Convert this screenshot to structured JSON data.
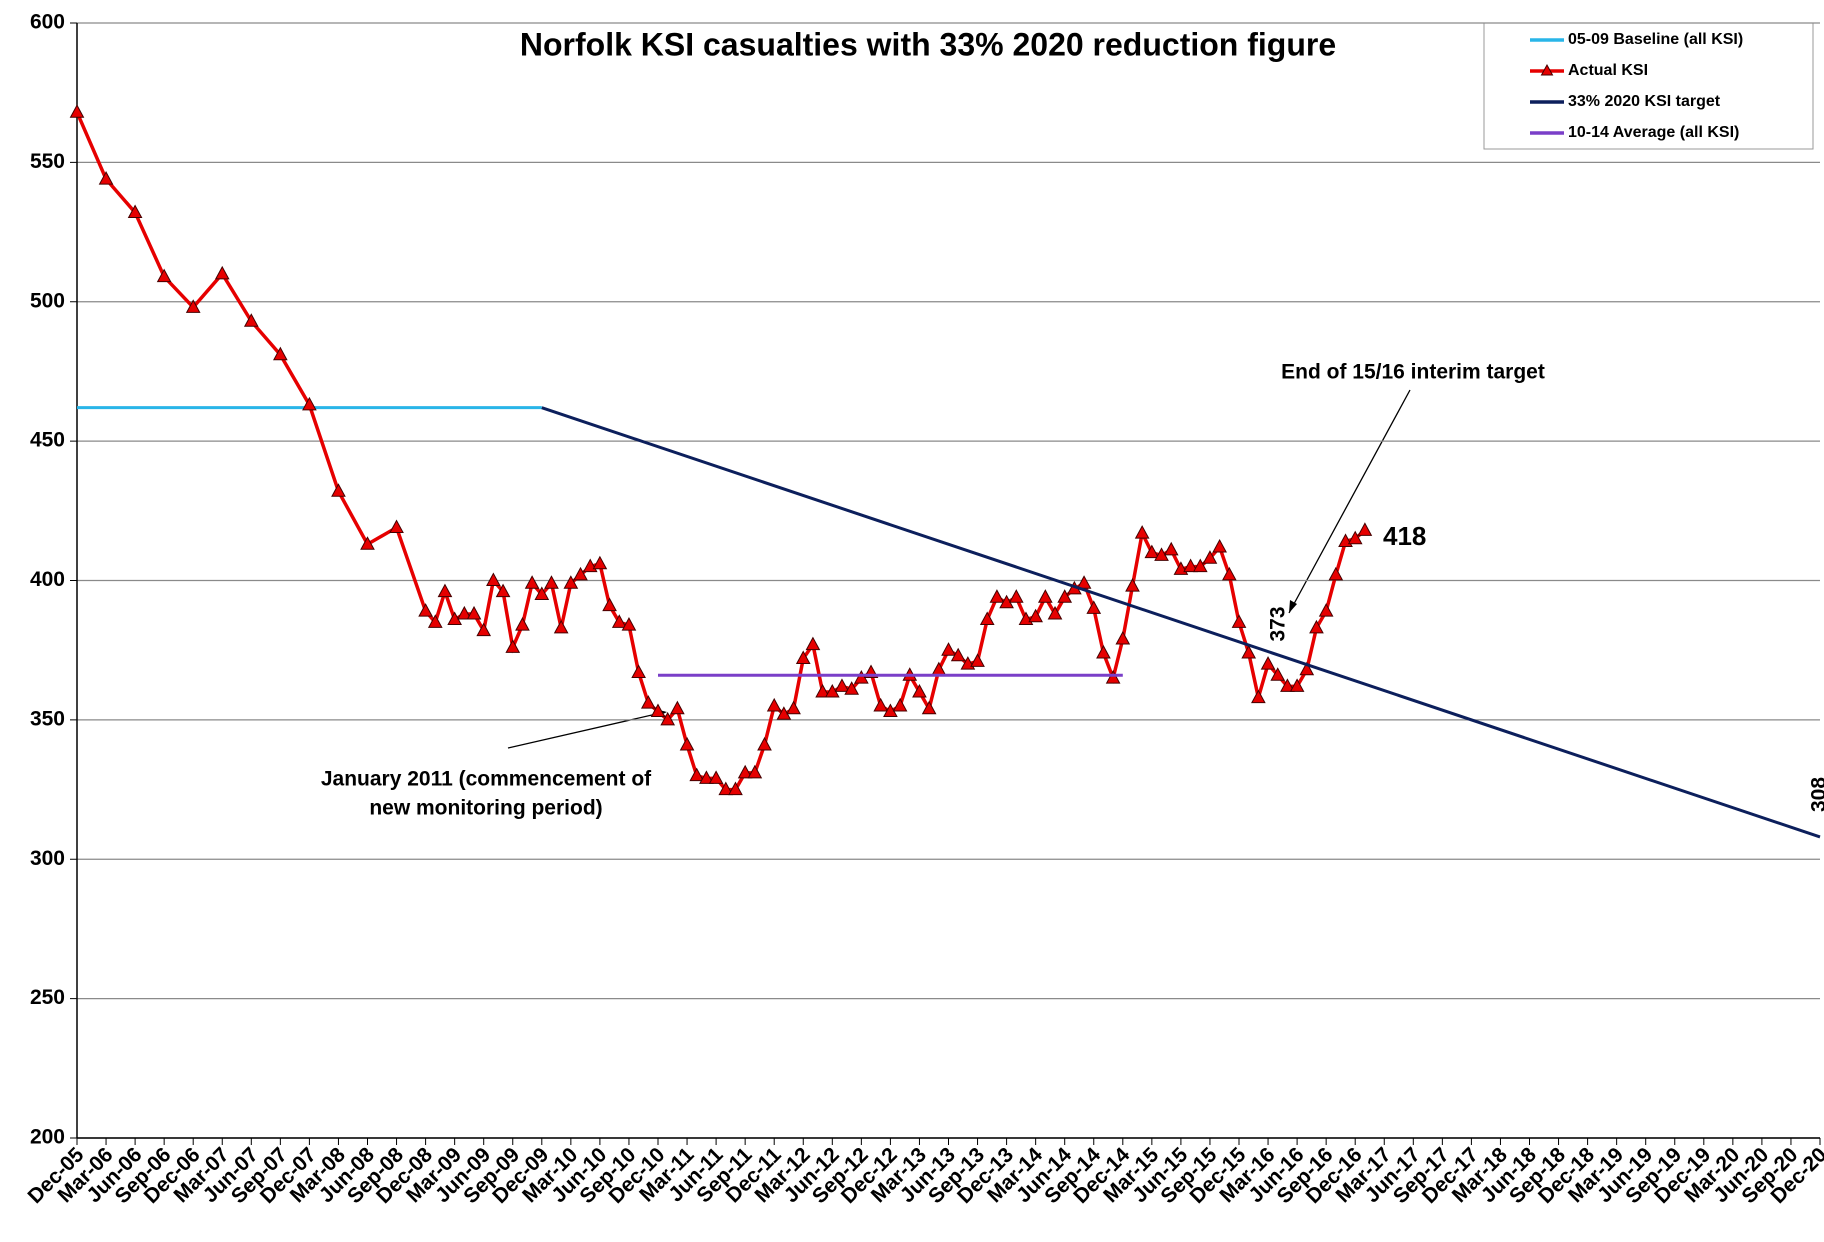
{
  "chart_data": {
    "type": "line",
    "title": "Norfolk KSI casualties with 33% 2020 reduction figure",
    "ylim": [
      200,
      600
    ],
    "yticks": [
      200,
      250,
      300,
      350,
      400,
      450,
      500,
      550,
      600
    ],
    "xlim": [
      {
        "value": "2005-12",
        "label": "Dec-05"
      },
      {
        "value": "2020-12",
        "label": "Dec-20"
      }
    ],
    "grid": true,
    "legend": "top-right",
    "xticks": [
      {
        "value": "2005-12",
        "label": "Dec-05"
      },
      {
        "value": "2006-03",
        "label": "Mar-06"
      },
      {
        "value": "2006-06",
        "label": "Jun-06"
      },
      {
        "value": "2006-09",
        "label": "Sep-06"
      },
      {
        "value": "2006-12",
        "label": "Dec-06"
      },
      {
        "value": "2007-03",
        "label": "Mar-07"
      },
      {
        "value": "2007-06",
        "label": "Jun-07"
      },
      {
        "value": "2007-09",
        "label": "Sep-07"
      },
      {
        "value": "2007-12",
        "label": "Dec-07"
      },
      {
        "value": "2008-03",
        "label": "Mar-08"
      },
      {
        "value": "2008-06",
        "label": "Jun-08"
      },
      {
        "value": "2008-09",
        "label": "Sep-08"
      },
      {
        "value": "2008-12",
        "label": "Dec-08"
      },
      {
        "value": "2009-03",
        "label": "Mar-09"
      },
      {
        "value": "2009-06",
        "label": "Jun-09"
      },
      {
        "value": "2009-09",
        "label": "Sep-09"
      },
      {
        "value": "2009-12",
        "label": "Dec-09"
      },
      {
        "value": "2010-03",
        "label": "Mar-10"
      },
      {
        "value": "2010-06",
        "label": "Jun-10"
      },
      {
        "value": "2010-09",
        "label": "Sep-10"
      },
      {
        "value": "2010-12",
        "label": "Dec-10"
      },
      {
        "value": "2011-03",
        "label": "Mar-11"
      },
      {
        "value": "2011-06",
        "label": "Jun-11"
      },
      {
        "value": "2011-09",
        "label": "Sep-11"
      },
      {
        "value": "2011-12",
        "label": "Dec-11"
      },
      {
        "value": "2012-03",
        "label": "Mar-12"
      },
      {
        "value": "2012-06",
        "label": "Jun-12"
      },
      {
        "value": "2012-09",
        "label": "Sep-12"
      },
      {
        "value": "2012-12",
        "label": "Dec-12"
      },
      {
        "value": "2013-03",
        "label": "Mar-13"
      },
      {
        "value": "2013-06",
        "label": "Jun-13"
      },
      {
        "value": "2013-09",
        "label": "Sep-13"
      },
      {
        "value": "2013-12",
        "label": "Dec-13"
      },
      {
        "value": "2014-03",
        "label": "Mar-14"
      },
      {
        "value": "2014-06",
        "label": "Jun-14"
      },
      {
        "value": "2014-09",
        "label": "Sep-14"
      },
      {
        "value": "2014-12",
        "label": "Dec-14"
      },
      {
        "value": "2015-03",
        "label": "Mar-15"
      },
      {
        "value": "2015-06",
        "label": "Jun-15"
      },
      {
        "value": "2015-09",
        "label": "Sep-15"
      },
      {
        "value": "2015-12",
        "label": "Dec-15"
      },
      {
        "value": "2016-03",
        "label": "Mar-16"
      },
      {
        "value": "2016-06",
        "label": "Jun-16"
      },
      {
        "value": "2016-09",
        "label": "Sep-16"
      },
      {
        "value": "2016-12",
        "label": "Dec-16"
      },
      {
        "value": "2017-03",
        "label": "Mar-17"
      },
      {
        "value": "2017-06",
        "label": "Jun-17"
      },
      {
        "value": "2017-09",
        "label": "Sep-17"
      },
      {
        "value": "2017-12",
        "label": "Dec-17"
      },
      {
        "value": "2018-03",
        "label": "Mar-18"
      },
      {
        "value": "2018-06",
        "label": "Jun-18"
      },
      {
        "value": "2018-09",
        "label": "Sep-18"
      },
      {
        "value": "2018-12",
        "label": "Dec-18"
      },
      {
        "value": "2019-03",
        "label": "Mar-19"
      },
      {
        "value": "2019-06",
        "label": "Jun-19"
      },
      {
        "value": "2019-09",
        "label": "Sep-19"
      },
      {
        "value": "2019-12",
        "label": "Dec-19"
      },
      {
        "value": "2020-03",
        "label": "Mar-20"
      },
      {
        "value": "2020-06",
        "label": "Jun-20"
      },
      {
        "value": "2020-09",
        "label": "Sep-20"
      },
      {
        "value": "2020-12",
        "label": "Dec-20"
      }
    ],
    "series": [
      {
        "name": "05-09 Baseline (all KSI)",
        "color": "#29b5e8",
        "x": [
          "2005-12",
          "2009-12"
        ],
        "values": [
          462,
          462
        ]
      },
      {
        "name": "Actual KSI",
        "color": "#e60000",
        "marker": "triangle",
        "x": [
          "2005-12",
          "2006-03",
          "2006-06",
          "2006-09",
          "2006-12",
          "2007-03",
          "2007-06",
          "2007-09",
          "2007-12",
          "2008-03",
          "2008-06",
          "2008-09",
          "2008-12",
          "2009-01",
          "2009-02",
          "2009-03",
          "2009-04",
          "2009-05",
          "2009-06",
          "2009-07",
          "2009-08",
          "2009-09",
          "2009-10",
          "2009-11",
          "2009-12",
          "2010-01",
          "2010-02",
          "2010-03",
          "2010-04",
          "2010-05",
          "2010-06",
          "2010-07",
          "2010-08",
          "2010-09",
          "2010-10",
          "2010-11",
          "2010-12",
          "2011-01",
          "2011-02",
          "2011-03",
          "2011-04",
          "2011-05",
          "2011-06",
          "2011-07",
          "2011-08",
          "2011-09",
          "2011-10",
          "2011-11",
          "2011-12",
          "2012-01",
          "2012-02",
          "2012-03",
          "2012-04",
          "2012-05",
          "2012-06",
          "2012-07",
          "2012-08",
          "2012-09",
          "2012-10",
          "2012-11",
          "2012-12",
          "2013-01",
          "2013-02",
          "2013-03",
          "2013-04",
          "2013-05",
          "2013-06",
          "2013-07",
          "2013-08",
          "2013-09",
          "2013-10",
          "2013-11",
          "2013-12",
          "2014-01",
          "2014-02",
          "2014-03",
          "2014-04",
          "2014-05",
          "2014-06",
          "2014-07",
          "2014-08",
          "2014-09",
          "2014-10",
          "2014-11",
          "2014-12",
          "2015-01",
          "2015-02",
          "2015-03",
          "2015-04",
          "2015-05",
          "2015-06",
          "2015-07",
          "2015-08",
          "2015-09",
          "2015-10",
          "2015-11",
          "2015-12",
          "2016-01",
          "2016-02",
          "2016-03",
          "2016-04",
          "2016-05",
          "2016-06",
          "2016-07",
          "2016-08",
          "2016-09",
          "2016-10",
          "2016-11",
          "2016-12",
          "2017-01"
        ],
        "values": [
          568,
          544,
          532,
          509,
          498,
          510,
          493,
          481,
          463,
          432,
          413,
          419,
          389,
          385,
          396,
          386,
          388,
          388,
          382,
          400,
          396,
          376,
          384,
          399,
          395,
          399,
          383,
          399,
          402,
          405,
          406,
          391,
          385,
          384,
          367,
          356,
          353,
          350,
          354,
          341,
          330,
          329,
          329,
          325,
          325,
          331,
          331,
          341,
          355,
          352,
          354,
          372,
          377,
          360,
          360,
          362,
          361,
          365,
          367,
          355,
          353,
          355,
          366,
          360,
          354,
          368,
          375,
          373,
          370,
          371,
          386,
          394,
          392,
          394,
          386,
          387,
          394,
          388,
          394,
          397,
          399,
          390,
          374,
          365,
          379,
          398,
          417,
          410,
          409,
          411,
          404,
          405,
          405,
          408,
          412,
          402,
          385,
          374,
          358,
          370,
          366,
          362,
          362,
          368,
          383,
          389,
          402,
          414,
          415,
          418
        ]
      },
      {
        "name": "33%  2020 KSI target",
        "color": "#0c1f5c",
        "x": [
          "2009-12",
          "2020-12"
        ],
        "values": [
          462,
          308
        ]
      },
      {
        "name": "10-14 Average (all KSI)",
        "color": "#7a3fc8",
        "x": [
          "2010-12",
          "2014-12"
        ],
        "values": [
          366,
          366
        ]
      }
    ],
    "annotations": [
      "End of 15/16 interim target",
      "January 2011 (commencement  of",
      "new monitoring period)",
      "373",
      "418",
      "308"
    ]
  }
}
